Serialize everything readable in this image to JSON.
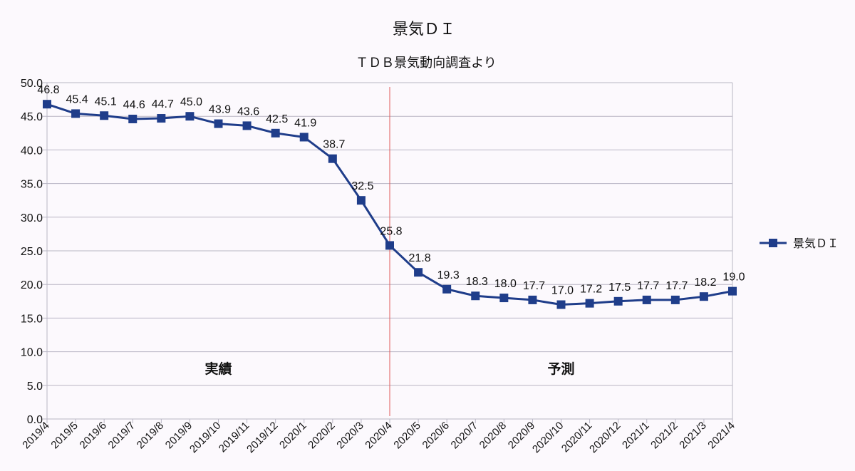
{
  "chart_data": {
    "type": "line",
    "title": "景気ＤＩ",
    "subtitle": "ＴＤＢ景気動向調査より",
    "xlabel": "",
    "ylabel": "",
    "categories": [
      "2019/4",
      "2019/5",
      "2019/6",
      "2019/7",
      "2019/8",
      "2019/9",
      "2019/10",
      "2019/11",
      "2019/12",
      "2020/1",
      "2020/2",
      "2020/3",
      "2020/4",
      "2020/5",
      "2020/6",
      "2020/7",
      "2020/8",
      "2020/9",
      "2020/10",
      "2020/11",
      "2020/12",
      "2021/1",
      "2021/2",
      "2021/3",
      "2021/4"
    ],
    "series": [
      {
        "name": "景気ＤＩ",
        "values": [
          46.8,
          45.4,
          45.1,
          44.6,
          44.7,
          45.0,
          43.9,
          43.6,
          42.5,
          41.9,
          38.7,
          32.5,
          25.8,
          21.8,
          19.3,
          18.3,
          18.0,
          17.7,
          17.0,
          17.2,
          17.5,
          17.7,
          17.7,
          18.2,
          19.0
        ],
        "labels": [
          "46.8",
          "45.4",
          "45.1",
          "44.6",
          "44.7",
          "45.0",
          "43.9",
          "43.6",
          "42.5",
          "41.9",
          "38.7",
          "32.5",
          "25.8",
          "21.8",
          "19.3",
          "18.3",
          "18.0",
          "17.7",
          "17.0",
          "17.2",
          "17.5",
          "17.7",
          "17.7",
          "18.2",
          "19.0"
        ],
        "color": "#1f3d8a",
        "marker": "square"
      }
    ],
    "ylim": [
      0,
      50
    ],
    "yticks": [
      "0.0",
      "5.0",
      "10.0",
      "15.0",
      "20.0",
      "25.0",
      "30.0",
      "35.0",
      "40.0",
      "45.0",
      "50.0"
    ],
    "grid": true,
    "legend": "right",
    "divider": {
      "at_category": "2020/4",
      "color": "#e05a5a"
    },
    "annotations": [
      {
        "text": "実績",
        "region": "actual"
      },
      {
        "text": "予測",
        "region": "forecast"
      }
    ]
  }
}
